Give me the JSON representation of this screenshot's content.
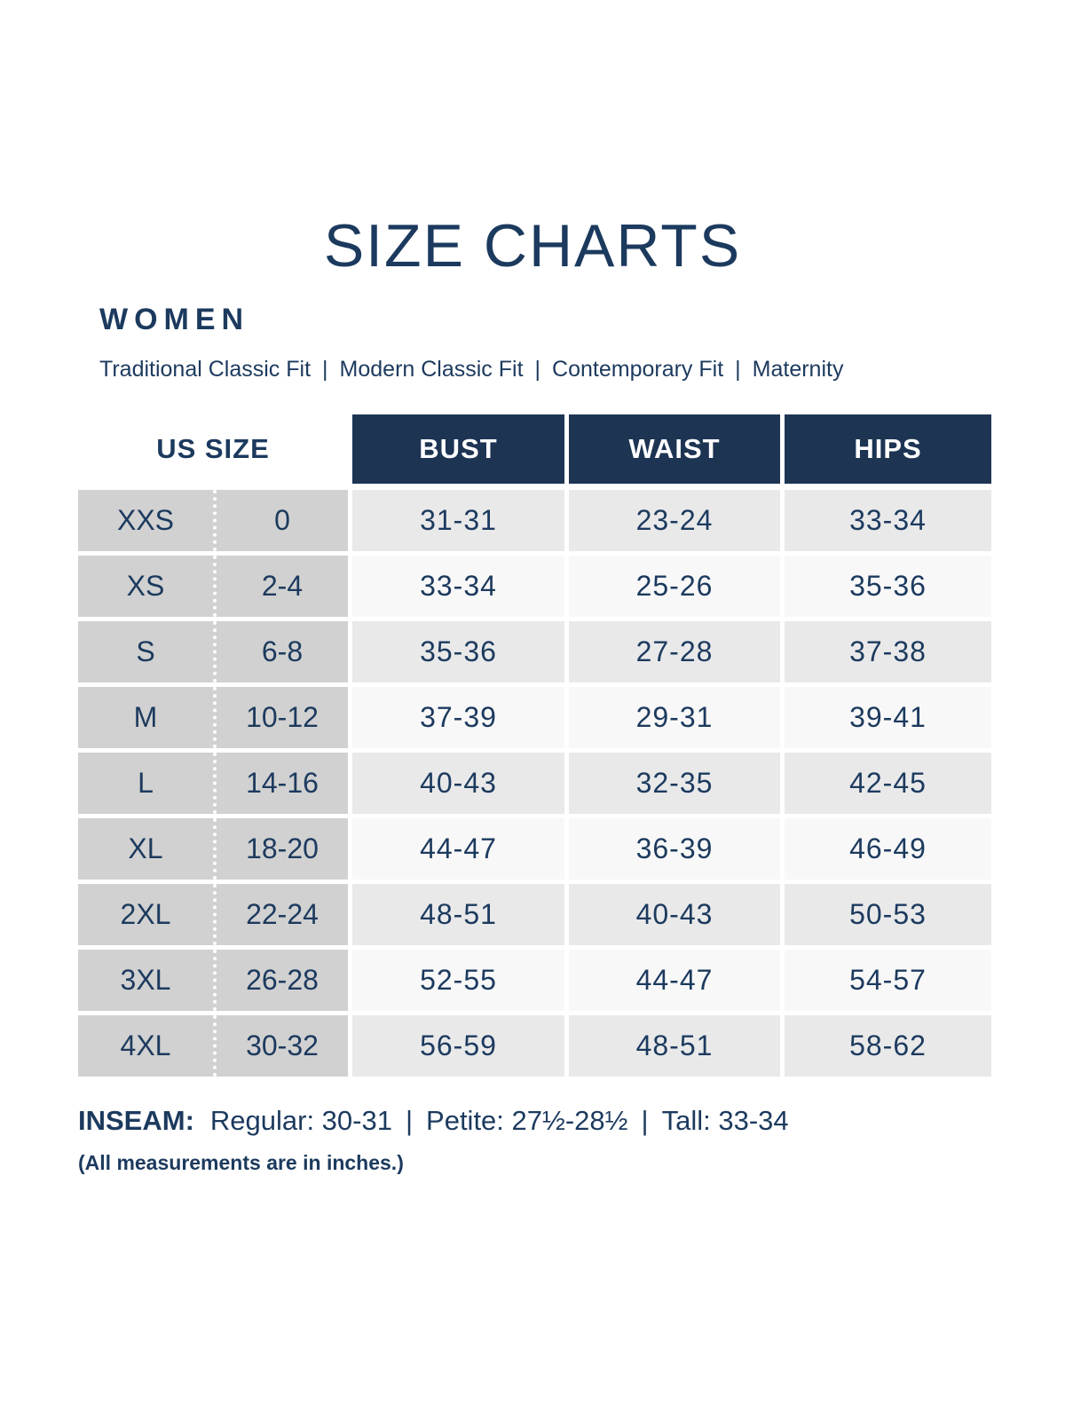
{
  "colors": {
    "navy": "#1c3a5e",
    "header_bg": "#1d3453",
    "header_text": "#ffffff",
    "size_col_bg": "#d1d1d1",
    "row_shade_dark": "#e9e9ea",
    "row_shade_light": "#f8f8f8",
    "page_bg": "#ffffff"
  },
  "title": "SIZE CHARTS",
  "section": {
    "heading": "WOMEN",
    "fits": [
      "Traditional Classic Fit",
      "Modern Classic Fit",
      "Contemporary Fit",
      "Maternity"
    ],
    "separator": "|"
  },
  "table": {
    "headers": {
      "us_size": "US SIZE",
      "bust": "BUST",
      "waist": "WAIST",
      "hips": "HIPS"
    },
    "rows": [
      {
        "size": "XXS",
        "us_size": "0",
        "bust": "31-31",
        "waist": "23-24",
        "hips": "33-34"
      },
      {
        "size": "XS",
        "us_size": "2-4",
        "bust": "33-34",
        "waist": "25-26",
        "hips": "35-36"
      },
      {
        "size": "S",
        "us_size": "6-8",
        "bust": "35-36",
        "waist": "27-28",
        "hips": "37-38"
      },
      {
        "size": "M",
        "us_size": "10-12",
        "bust": "37-39",
        "waist": "29-31",
        "hips": "39-41"
      },
      {
        "size": "L",
        "us_size": "14-16",
        "bust": "40-43",
        "waist": "32-35",
        "hips": "42-45"
      },
      {
        "size": "XL",
        "us_size": "18-20",
        "bust": "44-47",
        "waist": "36-39",
        "hips": "46-49"
      },
      {
        "size": "2XL",
        "us_size": "22-24",
        "bust": "48-51",
        "waist": "40-43",
        "hips": "50-53"
      },
      {
        "size": "3XL",
        "us_size": "26-28",
        "bust": "52-55",
        "waist": "44-47",
        "hips": "54-57"
      },
      {
        "size": "4XL",
        "us_size": "30-32",
        "bust": "56-59",
        "waist": "48-51",
        "hips": "58-62"
      }
    ]
  },
  "footer": {
    "inseam_label": "INSEAM:",
    "inseam_items": [
      "Regular: 30-31",
      "Petite: 27½-28½",
      "Tall: 33-34"
    ],
    "separator": "|",
    "note": "(All measurements are in inches.)"
  }
}
